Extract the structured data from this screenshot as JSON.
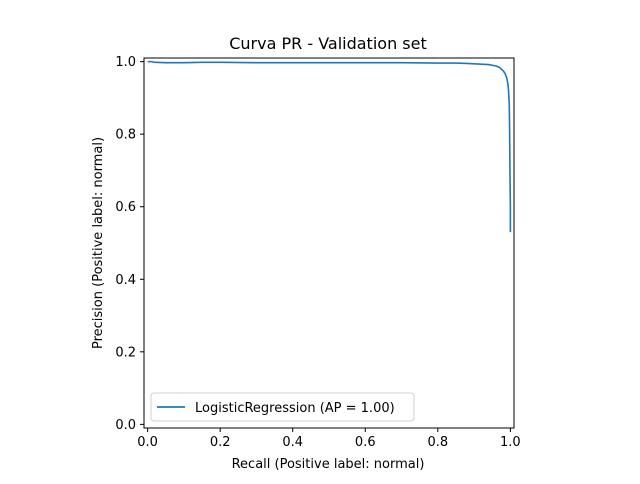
{
  "chart_data": {
    "type": "line",
    "title": "Curva PR - Validation set",
    "xlabel": "Recall (Positive label: normal)",
    "ylabel": "Precision (Positive label: normal)",
    "xlim": [
      -0.01,
      1.01
    ],
    "ylim": [
      -0.01,
      1.01
    ],
    "xticks": [
      0.0,
      0.2,
      0.4,
      0.6,
      0.8,
      1.0
    ],
    "xtick_labels": [
      "0.0",
      "0.2",
      "0.4",
      "0.6",
      "0.8",
      "1.0"
    ],
    "yticks": [
      0.0,
      0.2,
      0.4,
      0.6,
      0.8,
      1.0
    ],
    "ytick_labels": [
      "0.0",
      "0.2",
      "0.4",
      "0.6",
      "0.8",
      "1.0"
    ],
    "grid": false,
    "legend_position": "lower-left",
    "series": [
      {
        "name": "LogisticRegression (AP = 1.00)",
        "color": "#1f77b4",
        "x": [
          0.0,
          0.01,
          0.02,
          0.05,
          0.1,
          0.15,
          0.2,
          0.3,
          0.4,
          0.5,
          0.6,
          0.7,
          0.8,
          0.85,
          0.88,
          0.9,
          0.92,
          0.94,
          0.96,
          0.97,
          0.98,
          0.985,
          0.99,
          0.993,
          0.995,
          0.997,
          0.998,
          0.999,
          1.0,
          1.0
        ],
        "y": [
          1.0,
          1.0,
          0.998,
          0.997,
          0.997,
          0.998,
          0.998,
          0.997,
          0.997,
          0.997,
          0.997,
          0.997,
          0.996,
          0.996,
          0.995,
          0.994,
          0.993,
          0.992,
          0.988,
          0.984,
          0.975,
          0.968,
          0.955,
          0.94,
          0.92,
          0.88,
          0.8,
          0.68,
          0.6,
          0.53
        ]
      }
    ]
  }
}
